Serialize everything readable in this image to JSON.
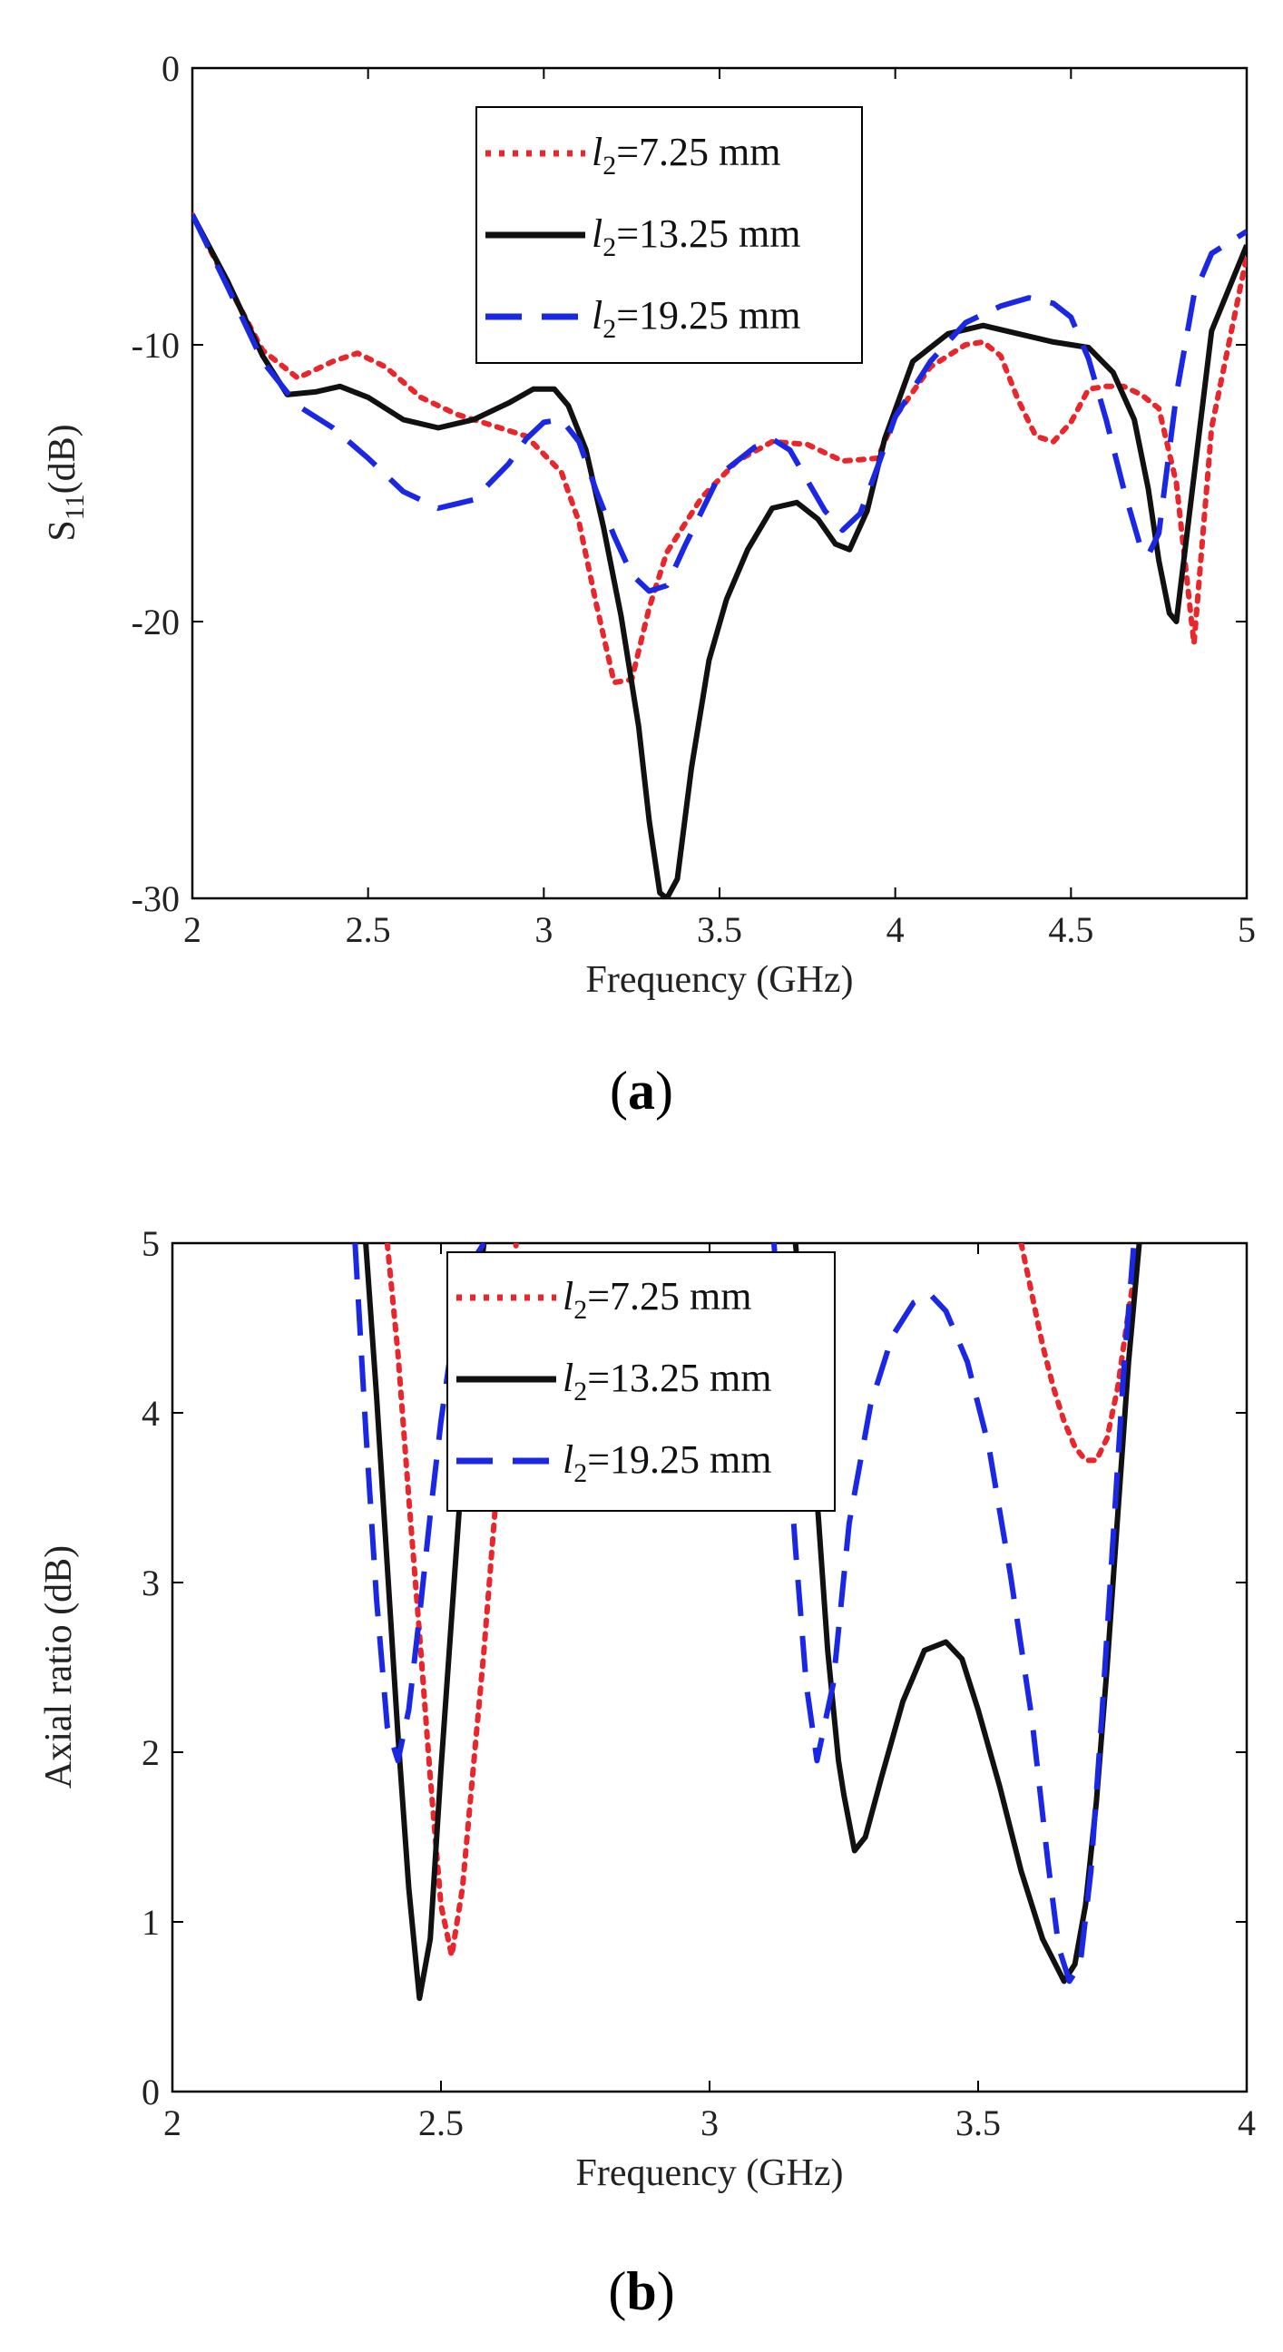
{
  "chart_data": [
    {
      "type": "line",
      "panel_label_open": "(",
      "panel_label_letter": "a",
      "panel_label_close": ")",
      "xlabel": "Frequency (GHz)",
      "ylabel_main": "S",
      "ylabel_sub": "11",
      "ylabel_unit": "(dB)",
      "xlim": [
        2,
        5
      ],
      "ylim": [
        -30,
        0
      ],
      "xticks": [
        2,
        2.5,
        3,
        3.5,
        4,
        4.5,
        5
      ],
      "xtick_labels": [
        "2",
        "2.5",
        "3",
        "3.5",
        "4",
        "4.5",
        "5"
      ],
      "yticks": [
        -30,
        -20,
        -10,
        0
      ],
      "ytick_labels": [
        "-30",
        "-20",
        "-10",
        "0"
      ],
      "grid": false,
      "legend_position": "top-center",
      "series": [
        {
          "legend_var": "l",
          "legend_sub": "2",
          "legend_value": "=7.25 mm",
          "color": "#e8262b",
          "dash": "dotted",
          "x": [
            2.0,
            2.1,
            2.2,
            2.3,
            2.4,
            2.47,
            2.55,
            2.65,
            2.75,
            2.85,
            2.95,
            3.05,
            3.1,
            3.15,
            3.2,
            3.25,
            3.3,
            3.35,
            3.45,
            3.55,
            3.65,
            3.75,
            3.85,
            3.95,
            4.0,
            4.1,
            4.2,
            4.25,
            4.3,
            4.35,
            4.4,
            4.45,
            4.5,
            4.55,
            4.6,
            4.65,
            4.7,
            4.75,
            4.8,
            4.85,
            4.9,
            5.0
          ],
          "y": [
            -5.3,
            -7.8,
            -10.2,
            -11.2,
            -10.6,
            -10.3,
            -10.8,
            -11.9,
            -12.5,
            -12.9,
            -13.3,
            -14.6,
            -16.4,
            -19.4,
            -22.2,
            -22.1,
            -19.5,
            -17.5,
            -15.5,
            -14.2,
            -13.5,
            -13.6,
            -14.2,
            -14.1,
            -12.6,
            -10.8,
            -10.0,
            -9.9,
            -10.4,
            -12.0,
            -13.3,
            -13.5,
            -12.8,
            -11.6,
            -11.5,
            -11.5,
            -11.8,
            -12.3,
            -15.0,
            -20.8,
            -13.0,
            -6.8
          ]
        },
        {
          "legend_var": "l",
          "legend_sub": "2",
          "legend_value": "=13.25 mm",
          "color": "#111111",
          "dash": "solid",
          "x": [
            2.0,
            2.1,
            2.2,
            2.27,
            2.35,
            2.42,
            2.5,
            2.6,
            2.7,
            2.8,
            2.9,
            2.97,
            3.03,
            3.07,
            3.12,
            3.17,
            3.22,
            3.27,
            3.3,
            3.33,
            3.35,
            3.38,
            3.42,
            3.47,
            3.52,
            3.58,
            3.65,
            3.72,
            3.78,
            3.83,
            3.87,
            3.92,
            3.97,
            4.05,
            4.15,
            4.25,
            4.35,
            4.45,
            4.55,
            4.62,
            4.68,
            4.72,
            4.75,
            4.78,
            4.8,
            4.84,
            4.9,
            5.0
          ],
          "y": [
            -5.3,
            -7.7,
            -10.4,
            -11.8,
            -11.7,
            -11.5,
            -11.9,
            -12.7,
            -13.0,
            -12.7,
            -12.1,
            -11.6,
            -11.6,
            -12.2,
            -13.8,
            -16.6,
            -19.8,
            -23.8,
            -27.2,
            -29.8,
            -30.0,
            -29.3,
            -25.3,
            -21.4,
            -19.2,
            -17.4,
            -15.9,
            -15.7,
            -16.3,
            -17.2,
            -17.4,
            -16.0,
            -13.4,
            -10.6,
            -9.6,
            -9.3,
            -9.6,
            -9.9,
            -10.1,
            -11.0,
            -12.7,
            -15.2,
            -17.8,
            -19.7,
            -20.0,
            -15.8,
            -9.5,
            -6.4
          ]
        },
        {
          "legend_var": "l",
          "legend_sub": "2",
          "legend_value": "=19.25 mm",
          "color": "#1a28e6",
          "dash": "dashed",
          "x": [
            2.0,
            2.1,
            2.2,
            2.3,
            2.4,
            2.5,
            2.6,
            2.7,
            2.8,
            2.9,
            2.95,
            3.0,
            3.05,
            3.1,
            3.15,
            3.2,
            3.25,
            3.3,
            3.35,
            3.4,
            3.5,
            3.6,
            3.65,
            3.7,
            3.75,
            3.8,
            3.85,
            3.9,
            3.95,
            4.0,
            4.1,
            4.2,
            4.3,
            4.38,
            4.45,
            4.5,
            4.55,
            4.6,
            4.65,
            4.7,
            4.72,
            4.75,
            4.8,
            4.85,
            4.9,
            5.0
          ],
          "y": [
            -5.3,
            -7.9,
            -10.6,
            -12.2,
            -13.0,
            -14.1,
            -15.3,
            -15.9,
            -15.6,
            -14.3,
            -13.4,
            -12.8,
            -12.7,
            -13.5,
            -15.3,
            -16.9,
            -18.3,
            -18.9,
            -18.7,
            -17.3,
            -14.7,
            -13.7,
            -13.4,
            -13.8,
            -14.9,
            -16.0,
            -16.7,
            -16.1,
            -14.4,
            -12.6,
            -10.6,
            -9.2,
            -8.6,
            -8.3,
            -8.5,
            -9.0,
            -10.5,
            -12.7,
            -15.2,
            -17.4,
            -17.6,
            -16.8,
            -11.8,
            -8.2,
            -6.7,
            -5.9
          ]
        }
      ]
    },
    {
      "type": "line",
      "panel_label_open": "(",
      "panel_label_letter": "b",
      "panel_label_close": ")",
      "xlabel": "Frequency (GHz)",
      "ylabel": "Axial ratio (dB)",
      "xlim": [
        2,
        4
      ],
      "ylim": [
        0,
        5
      ],
      "xticks": [
        2,
        2.5,
        3,
        3.5,
        4
      ],
      "xtick_labels": [
        "2",
        "2.5",
        "3",
        "3.5",
        "4"
      ],
      "yticks": [
        0,
        1,
        2,
        3,
        4,
        5
      ],
      "ytick_labels": [
        "0",
        "1",
        "2",
        "3",
        "4",
        "5"
      ],
      "grid": false,
      "legend_position": "top-center",
      "series": [
        {
          "legend_var": "l",
          "legend_sub": "2",
          "legend_value": "=7.25 mm",
          "color": "#e8262b",
          "dash": "dotted",
          "segments": [
            {
              "x": [
                2.4,
                2.42,
                2.44,
                2.46,
                2.48,
                2.5,
                2.52,
                2.54,
                2.56,
                2.58,
                2.6,
                2.62,
                2.64
              ],
              "y": [
                5.0,
                4.35,
                3.5,
                2.7,
                1.85,
                1.1,
                0.8,
                1.2,
                1.9,
                2.6,
                3.4,
                4.3,
                5.0
              ]
            },
            {
              "x": [
                3.58,
                3.6,
                3.62,
                3.64,
                3.66,
                3.68,
                3.7,
                3.72,
                3.74,
                3.76,
                3.78,
                3.8
              ],
              "y": [
                5.0,
                4.7,
                4.4,
                4.15,
                3.95,
                3.8,
                3.72,
                3.72,
                3.85,
                4.15,
                4.6,
                5.0
              ]
            }
          ]
        },
        {
          "legend_var": "l",
          "legend_sub": "2",
          "legend_value": "=13.25 mm",
          "color": "#111111",
          "dash": "solid",
          "segments": [
            {
              "x": [
                2.36,
                2.38,
                2.4,
                2.42,
                2.44,
                2.46,
                2.48,
                2.5,
                2.52,
                2.54,
                2.56,
                2.58
              ],
              "y": [
                5.0,
                4.1,
                3.1,
                2.1,
                1.2,
                0.55,
                0.9,
                1.9,
                2.8,
                3.7,
                4.5,
                5.0
              ]
            },
            {
              "x": [
                3.16,
                3.18,
                3.2,
                3.22,
                3.24,
                3.25,
                3.27,
                3.29,
                3.32,
                3.36,
                3.4,
                3.44,
                3.47,
                3.5,
                3.54,
                3.58,
                3.62,
                3.66,
                3.68,
                3.7,
                3.72,
                3.74,
                3.76,
                3.78,
                3.8
              ],
              "y": [
                5.0,
                4.3,
                3.5,
                2.6,
                1.95,
                1.75,
                1.42,
                1.5,
                1.85,
                2.3,
                2.6,
                2.65,
                2.55,
                2.25,
                1.8,
                1.3,
                0.9,
                0.65,
                0.75,
                1.1,
                1.7,
                2.5,
                3.4,
                4.3,
                5.0
              ]
            }
          ]
        },
        {
          "legend_var": "l",
          "legend_sub": "2",
          "legend_value": "=19.25 mm",
          "color": "#1a28e6",
          "dash": "dashed",
          "segments": [
            {
              "x": [
                2.34,
                2.36,
                2.38,
                2.4,
                2.42,
                2.44,
                2.46,
                2.48,
                2.5,
                2.52,
                2.54,
                2.56,
                2.58
              ],
              "y": [
                5.0,
                3.9,
                2.9,
                2.15,
                1.95,
                2.25,
                2.8,
                3.4,
                3.95,
                4.4,
                4.7,
                4.9,
                5.0
              ]
            },
            {
              "x": [
                3.12,
                3.14,
                3.16,
                3.18,
                3.2,
                3.23,
                3.26,
                3.3,
                3.34,
                3.38,
                3.41,
                3.44,
                3.48,
                3.52,
                3.56,
                3.6,
                3.63,
                3.65,
                3.67,
                3.69,
                3.71,
                3.73,
                3.75,
                3.77,
                3.79
              ],
              "y": [
                5.0,
                4.1,
                3.2,
                2.4,
                1.95,
                2.4,
                3.35,
                4.05,
                4.45,
                4.65,
                4.7,
                4.6,
                4.3,
                3.8,
                3.05,
                2.2,
                1.35,
                0.85,
                0.65,
                0.75,
                1.3,
                2.2,
                3.2,
                4.2,
                5.0
              ]
            }
          ]
        }
      ]
    }
  ]
}
